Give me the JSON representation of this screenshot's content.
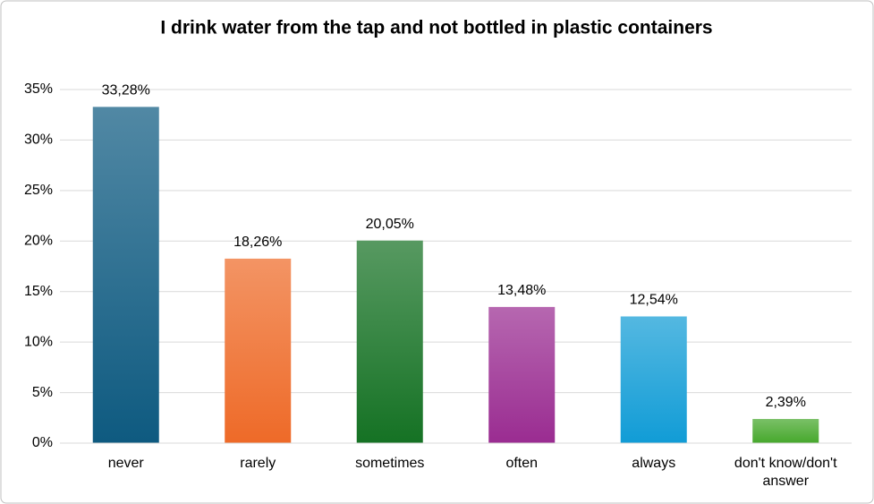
{
  "chart_data": {
    "type": "bar",
    "title": "I drink water from the tap and not bottled in plastic containers",
    "categories": [
      "never",
      "rarely",
      "sometimes",
      "often",
      "always",
      "don't know/don't answer"
    ],
    "values": [
      33.28,
      18.26,
      20.05,
      13.48,
      12.54,
      2.39
    ],
    "value_labels": [
      "33,28%",
      "18,26%",
      "20,05%",
      "13,48%",
      "12,54%",
      "2,39%"
    ],
    "colors": [
      "#0e5a80",
      "#ee6a28",
      "#157224",
      "#9a2c91",
      "#119cd6",
      "#46a82c"
    ],
    "ylim": [
      0,
      35
    ],
    "yticks": [
      {
        "value": 0,
        "label": "0%"
      },
      {
        "value": 5,
        "label": "5%"
      },
      {
        "value": 10,
        "label": "10%"
      },
      {
        "value": 15,
        "label": "15%"
      },
      {
        "value": 20,
        "label": "20%"
      },
      {
        "value": 25,
        "label": "25%"
      },
      {
        "value": 30,
        "label": "30%"
      },
      {
        "value": 35,
        "label": "35%"
      }
    ],
    "grid": true
  }
}
